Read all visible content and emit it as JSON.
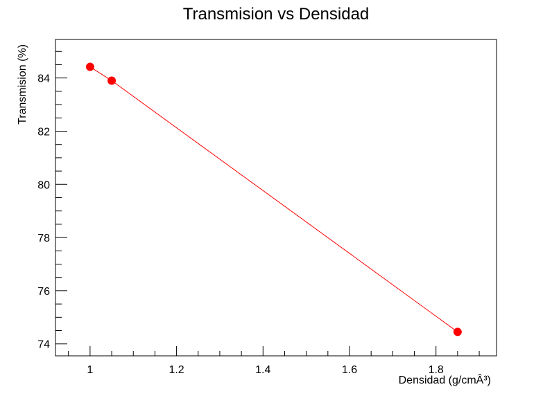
{
  "chart_data": {
    "type": "scatter",
    "title": "Transmision vs Densidad",
    "xlabel": "Densidad (g/cmÂ³)",
    "ylabel": "Transmision (%)",
    "xlim": [
      0.92,
      1.94
    ],
    "ylim": [
      73.55,
      85.45
    ],
    "x_ticks": [
      1,
      1.2,
      1.4,
      1.6,
      1.8
    ],
    "x_tick_labels": [
      "1",
      "1.2",
      "1.4",
      "1.6",
      "1.8"
    ],
    "y_ticks": [
      74,
      76,
      78,
      80,
      82,
      84
    ],
    "y_tick_labels": [
      "74",
      "76",
      "78",
      "80",
      "82",
      "84"
    ],
    "grid": false,
    "series": [
      {
        "x": [
          1.0,
          1.05,
          1.85
        ],
        "y": [
          84.42,
          83.9,
          74.45
        ],
        "color": "#ff0000",
        "line": true,
        "marker": "circle"
      }
    ]
  }
}
